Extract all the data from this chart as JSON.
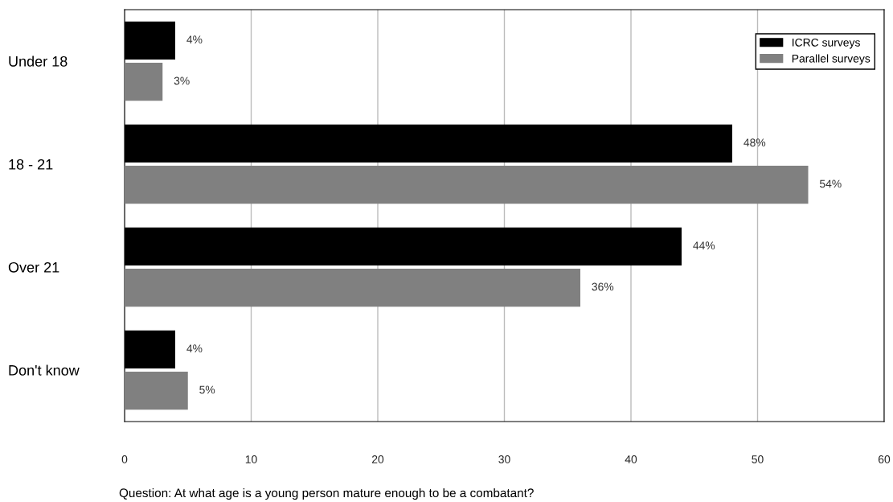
{
  "chart_data": {
    "type": "bar",
    "orientation": "horizontal",
    "categories": [
      "Under 18",
      "18 - 21",
      "Over 21",
      "Don't know"
    ],
    "series": [
      {
        "name": "ICRC surveys",
        "color": "#000000",
        "values": [
          4,
          48,
          44,
          4
        ],
        "value_labels": [
          "4%",
          "48%",
          "44%",
          "4%"
        ]
      },
      {
        "name": "Parallel surveys",
        "color": "#808080",
        "values": [
          3,
          54,
          36,
          5
        ],
        "value_labels": [
          "3%",
          "54%",
          "36%",
          "5%"
        ]
      }
    ],
    "xlim": [
      0,
      60
    ],
    "xticks": [
      0,
      10,
      20,
      30,
      40,
      50,
      60
    ],
    "grid": "x",
    "legend": "top right",
    "annotations": [
      "Question: At what age is a young person mature enough to be a combatant?"
    ]
  }
}
